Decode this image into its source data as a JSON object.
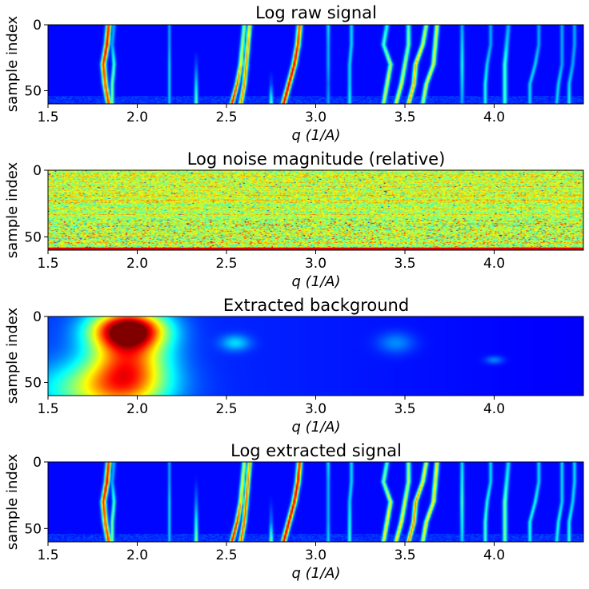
{
  "chart_data": [
    {
      "type": "heatmap",
      "title": "Log raw signal",
      "xlabel": "q (1/A)",
      "ylabel": "sample index",
      "xlim": [
        1.5,
        4.5
      ],
      "ylim": [
        60,
        0
      ],
      "xticks": [
        "1.5",
        "2.0",
        "2.5",
        "3.0",
        "3.5",
        "4.0"
      ],
      "yticks": [
        "0",
        "50"
      ],
      "colormap": "jet",
      "background": "#1040ff",
      "peaks": [
        {
          "q": [
            1.84,
            1.83,
            1.81,
            1.82,
            1.84
          ],
          "w": 0.014,
          "v": [
            0.85,
            0.9,
            0.85,
            0.8,
            0.85
          ]
        },
        {
          "q": [
            1.87,
            1.86,
            1.87,
            1.86,
            1.86
          ],
          "w": 0.01,
          "v": [
            0.3,
            0.3,
            0.45,
            0.5,
            0.5
          ]
        },
        {
          "q": [
            2.18,
            2.18,
            2.18,
            2.18,
            2.18
          ],
          "w": 0.008,
          "v": [
            0.3,
            0.3,
            0.35,
            0.35,
            0.35
          ]
        },
        {
          "q": [
            2.33,
            2.33,
            2.33,
            2.33,
            2.33
          ],
          "w": 0.01,
          "v": [
            0.05,
            0.1,
            0.2,
            0.35,
            0.5
          ]
        },
        {
          "q": [
            2.6,
            2.59,
            2.58,
            2.56,
            2.53
          ],
          "w": 0.012,
          "v": [
            0.5,
            0.55,
            0.65,
            0.8,
            0.9
          ]
        },
        {
          "q": [
            2.63,
            2.62,
            2.61,
            2.6,
            2.58
          ],
          "w": 0.012,
          "v": [
            0.65,
            0.7,
            0.75,
            0.75,
            0.75
          ]
        },
        {
          "q": [
            2.75,
            2.75,
            2.75,
            2.75,
            2.75
          ],
          "w": 0.01,
          "v": [
            0.05,
            0.05,
            0.1,
            0.2,
            0.5
          ]
        },
        {
          "q": [
            2.91,
            2.9,
            2.88,
            2.85,
            2.82
          ],
          "w": 0.014,
          "v": [
            0.8,
            0.85,
            0.9,
            0.9,
            0.9
          ]
        },
        {
          "q": [
            3.07,
            3.07,
            3.07,
            3.07,
            3.07
          ],
          "w": 0.01,
          "v": [
            0.35,
            0.3,
            0.3,
            0.25,
            0.3
          ]
        },
        {
          "q": [
            3.2,
            3.2,
            3.19,
            3.19,
            3.19
          ],
          "w": 0.01,
          "v": [
            0.35,
            0.35,
            0.35,
            0.35,
            0.4
          ]
        },
        {
          "q": [
            3.4,
            3.38,
            3.42,
            3.4,
            3.38
          ],
          "w": 0.012,
          "v": [
            0.4,
            0.45,
            0.55,
            0.6,
            0.55
          ]
        },
        {
          "q": [
            3.52,
            3.52,
            3.5,
            3.48,
            3.45
          ],
          "w": 0.012,
          "v": [
            0.45,
            0.5,
            0.55,
            0.6,
            0.6
          ]
        },
        {
          "q": [
            3.62,
            3.6,
            3.56,
            3.55,
            3.52
          ],
          "w": 0.012,
          "v": [
            0.55,
            0.6,
            0.7,
            0.7,
            0.7
          ]
        },
        {
          "q": [
            3.68,
            3.67,
            3.66,
            3.62,
            3.6
          ],
          "w": 0.012,
          "v": [
            0.6,
            0.6,
            0.6,
            0.6,
            0.55
          ]
        },
        {
          "q": [
            3.82,
            3.82,
            3.82,
            3.82,
            3.82
          ],
          "w": 0.01,
          "v": [
            0.3,
            0.35,
            0.4,
            0.35,
            0.3
          ]
        },
        {
          "q": [
            3.98,
            3.98,
            3.96,
            3.95,
            3.95
          ],
          "w": 0.01,
          "v": [
            0.3,
            0.3,
            0.35,
            0.4,
            0.4
          ]
        },
        {
          "q": [
            4.08,
            4.07,
            4.06,
            4.06,
            4.06
          ],
          "w": 0.012,
          "v": [
            0.3,
            0.35,
            0.45,
            0.45,
            0.45
          ]
        },
        {
          "q": [
            4.25,
            4.25,
            4.23,
            4.2,
            4.2
          ],
          "w": 0.01,
          "v": [
            0.3,
            0.3,
            0.35,
            0.35,
            0.35
          ]
        },
        {
          "q": [
            4.38,
            4.38,
            4.38,
            4.36,
            4.35
          ],
          "w": 0.01,
          "v": [
            0.3,
            0.3,
            0.3,
            0.35,
            0.35
          ]
        },
        {
          "q": [
            4.45,
            4.45,
            4.44,
            4.42,
            4.42
          ],
          "w": 0.01,
          "v": [
            0.3,
            0.3,
            0.3,
            0.35,
            0.4
          ]
        }
      ]
    },
    {
      "type": "heatmap",
      "title": "Log noise magnitude (relative)",
      "xlabel": "q (1/A)",
      "ylabel": "sample index",
      "xlim": [
        1.5,
        4.5
      ],
      "ylim": [
        60,
        0
      ],
      "xticks": [
        "1.5",
        "2.0",
        "2.5",
        "3.0",
        "3.5",
        "4.0"
      ],
      "yticks": [
        "0",
        "50"
      ],
      "colormap": "jet",
      "texture": "noise",
      "mean_level": 0.58,
      "hot_bottom_rows": 2
    },
    {
      "type": "heatmap",
      "title": "Extracted background",
      "xlabel": "q (1/A)",
      "ylabel": "sample index",
      "xlim": [
        1.5,
        4.5
      ],
      "ylim": [
        60,
        0
      ],
      "xticks": [
        "1.5",
        "2.0",
        "2.5",
        "3.0",
        "3.5",
        "4.0"
      ],
      "yticks": [
        "0",
        "50"
      ],
      "colormap": "jet",
      "texture": "smooth",
      "blobs": [
        {
          "q": 1.95,
          "s": 10,
          "wq": 0.2,
          "ws": 14,
          "v": 0.75
        },
        {
          "q": 1.95,
          "s": 35,
          "wq": 0.22,
          "ws": 30,
          "v": 0.55
        },
        {
          "q": 1.8,
          "s": 55,
          "wq": 0.35,
          "ws": 20,
          "v": 0.35
        },
        {
          "q": 2.55,
          "s": 20,
          "wq": 0.08,
          "ws": 6,
          "v": 0.18
        },
        {
          "q": 3.45,
          "s": 20,
          "wq": 0.1,
          "ws": 8,
          "v": 0.12
        },
        {
          "q": 4.0,
          "s": 33,
          "wq": 0.05,
          "ws": 3,
          "v": 0.12
        }
      ]
    },
    {
      "type": "heatmap",
      "title": "Log extracted signal",
      "xlabel": "q (1/A)",
      "ylabel": "sample index",
      "xlim": [
        1.5,
        4.5
      ],
      "ylim": [
        60,
        0
      ],
      "xticks": [
        "1.5",
        "2.0",
        "2.5",
        "3.0",
        "3.5",
        "4.0"
      ],
      "yticks": [
        "0",
        "50"
      ],
      "colormap": "jet",
      "background": "#1a30ff",
      "peaks": [
        {
          "q": [
            1.84,
            1.83,
            1.81,
            1.82,
            1.84
          ],
          "w": 0.014,
          "v": [
            0.85,
            0.9,
            0.85,
            0.8,
            0.85
          ]
        },
        {
          "q": [
            1.87,
            1.86,
            1.87,
            1.86,
            1.86
          ],
          "w": 0.01,
          "v": [
            0.3,
            0.3,
            0.45,
            0.5,
            0.5
          ]
        },
        {
          "q": [
            2.18,
            2.18,
            2.18,
            2.18,
            2.18
          ],
          "w": 0.008,
          "v": [
            0.3,
            0.3,
            0.35,
            0.35,
            0.35
          ]
        },
        {
          "q": [
            2.33,
            2.33,
            2.33,
            2.33,
            2.33
          ],
          "w": 0.01,
          "v": [
            0.1,
            0.15,
            0.25,
            0.4,
            0.55
          ]
        },
        {
          "q": [
            2.6,
            2.59,
            2.58,
            2.56,
            2.53
          ],
          "w": 0.012,
          "v": [
            0.55,
            0.6,
            0.7,
            0.85,
            0.9
          ]
        },
        {
          "q": [
            2.63,
            2.62,
            2.61,
            2.6,
            2.58
          ],
          "w": 0.012,
          "v": [
            0.7,
            0.75,
            0.8,
            0.8,
            0.8
          ]
        },
        {
          "q": [
            2.75,
            2.75,
            2.75,
            2.75,
            2.75
          ],
          "w": 0.01,
          "v": [
            0.05,
            0.1,
            0.15,
            0.25,
            0.55
          ]
        },
        {
          "q": [
            2.91,
            2.9,
            2.88,
            2.85,
            2.82
          ],
          "w": 0.014,
          "v": [
            0.85,
            0.9,
            0.9,
            0.9,
            0.9
          ]
        },
        {
          "q": [
            3.07,
            3.07,
            3.07,
            3.07,
            3.07
          ],
          "w": 0.01,
          "v": [
            0.35,
            0.3,
            0.3,
            0.3,
            0.35
          ]
        },
        {
          "q": [
            3.2,
            3.2,
            3.19,
            3.19,
            3.19
          ],
          "w": 0.01,
          "v": [
            0.35,
            0.35,
            0.35,
            0.4,
            0.45
          ]
        },
        {
          "q": [
            3.4,
            3.38,
            3.42,
            3.4,
            3.38
          ],
          "w": 0.012,
          "v": [
            0.45,
            0.5,
            0.6,
            0.65,
            0.6
          ]
        },
        {
          "q": [
            3.52,
            3.52,
            3.5,
            3.48,
            3.45
          ],
          "w": 0.012,
          "v": [
            0.5,
            0.55,
            0.6,
            0.65,
            0.65
          ]
        },
        {
          "q": [
            3.62,
            3.6,
            3.56,
            3.55,
            3.52
          ],
          "w": 0.012,
          "v": [
            0.6,
            0.65,
            0.75,
            0.75,
            0.75
          ]
        },
        {
          "q": [
            3.68,
            3.67,
            3.66,
            3.62,
            3.6
          ],
          "w": 0.012,
          "v": [
            0.65,
            0.65,
            0.65,
            0.65,
            0.6
          ]
        },
        {
          "q": [
            3.82,
            3.82,
            3.82,
            3.82,
            3.82
          ],
          "w": 0.01,
          "v": [
            0.35,
            0.4,
            0.45,
            0.4,
            0.35
          ]
        },
        {
          "q": [
            3.98,
            3.98,
            3.96,
            3.95,
            3.95
          ],
          "w": 0.01,
          "v": [
            0.35,
            0.35,
            0.4,
            0.45,
            0.45
          ]
        },
        {
          "q": [
            4.08,
            4.07,
            4.06,
            4.06,
            4.06
          ],
          "w": 0.012,
          "v": [
            0.35,
            0.4,
            0.5,
            0.5,
            0.5
          ]
        },
        {
          "q": [
            4.25,
            4.25,
            4.23,
            4.2,
            4.2
          ],
          "w": 0.01,
          "v": [
            0.35,
            0.35,
            0.4,
            0.4,
            0.4
          ]
        },
        {
          "q": [
            4.38,
            4.38,
            4.38,
            4.36,
            4.35
          ],
          "w": 0.01,
          "v": [
            0.35,
            0.35,
            0.35,
            0.4,
            0.4
          ]
        },
        {
          "q": [
            4.45,
            4.45,
            4.44,
            4.42,
            4.42
          ],
          "w": 0.01,
          "v": [
            0.35,
            0.35,
            0.35,
            0.4,
            0.45
          ]
        }
      ]
    }
  ]
}
